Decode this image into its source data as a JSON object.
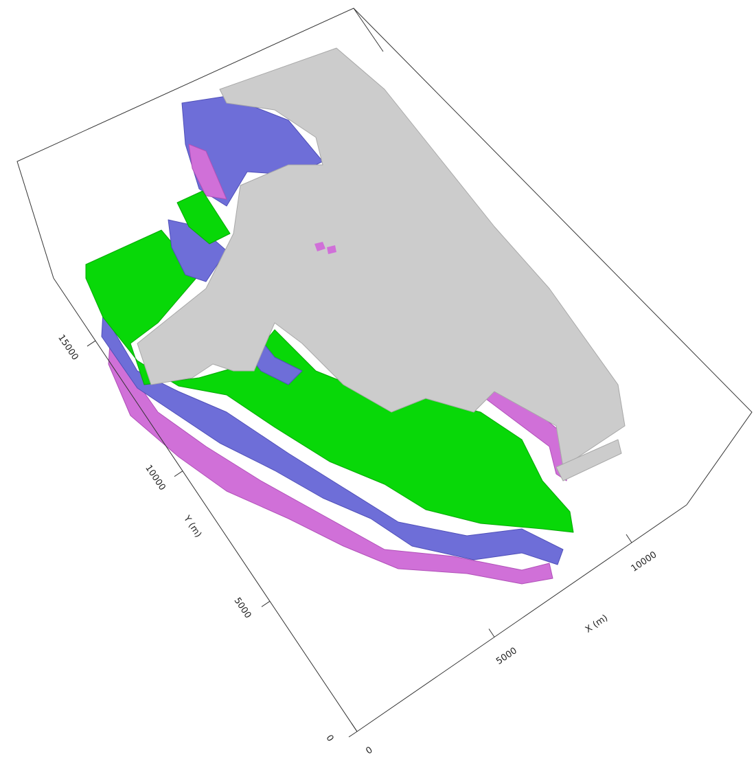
{
  "chart_data": {
    "type": "voxel",
    "xlabel": "X (m)",
    "ylabel": "Y (m)",
    "xlim": [
      0,
      12000
    ],
    "xticks": [
      0,
      5000,
      10000
    ],
    "ylim": [
      0,
      17400
    ],
    "yticks": [
      0,
      5000,
      10000,
      15000
    ]
  }
}
